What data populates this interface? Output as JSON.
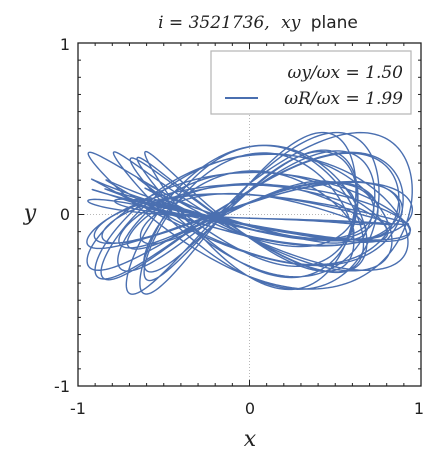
{
  "chart_data": {
    "type": "line",
    "title_math": "i = 3521736,",
    "title_math2": "xy",
    "title_text": "plane",
    "xlabel": "x",
    "ylabel": "y",
    "xlim": [
      -1,
      1
    ],
    "ylim": [
      -1,
      1
    ],
    "xticks": [
      "-1",
      "0",
      "1"
    ],
    "yticks": [
      "-1",
      "0",
      "1"
    ],
    "grid": "dotted lines at x=0 and y=0",
    "legend_placement": "top-right",
    "legend": [
      {
        "label": "ωy/ωx = 1.50",
        "has_line": false
      },
      {
        "label": "ωR/ωx = 1.99",
        "has_line": true
      }
    ],
    "series": [
      {
        "color": "#4a6fb0",
        "kind": "Lissajous-like orbit trace",
        "x_amplitude": 0.95,
        "y_amplitude": 0.42,
        "omega_y_over_omega_x": 1.5,
        "omega_R_over_omega_x": 1.99
      }
    ]
  }
}
